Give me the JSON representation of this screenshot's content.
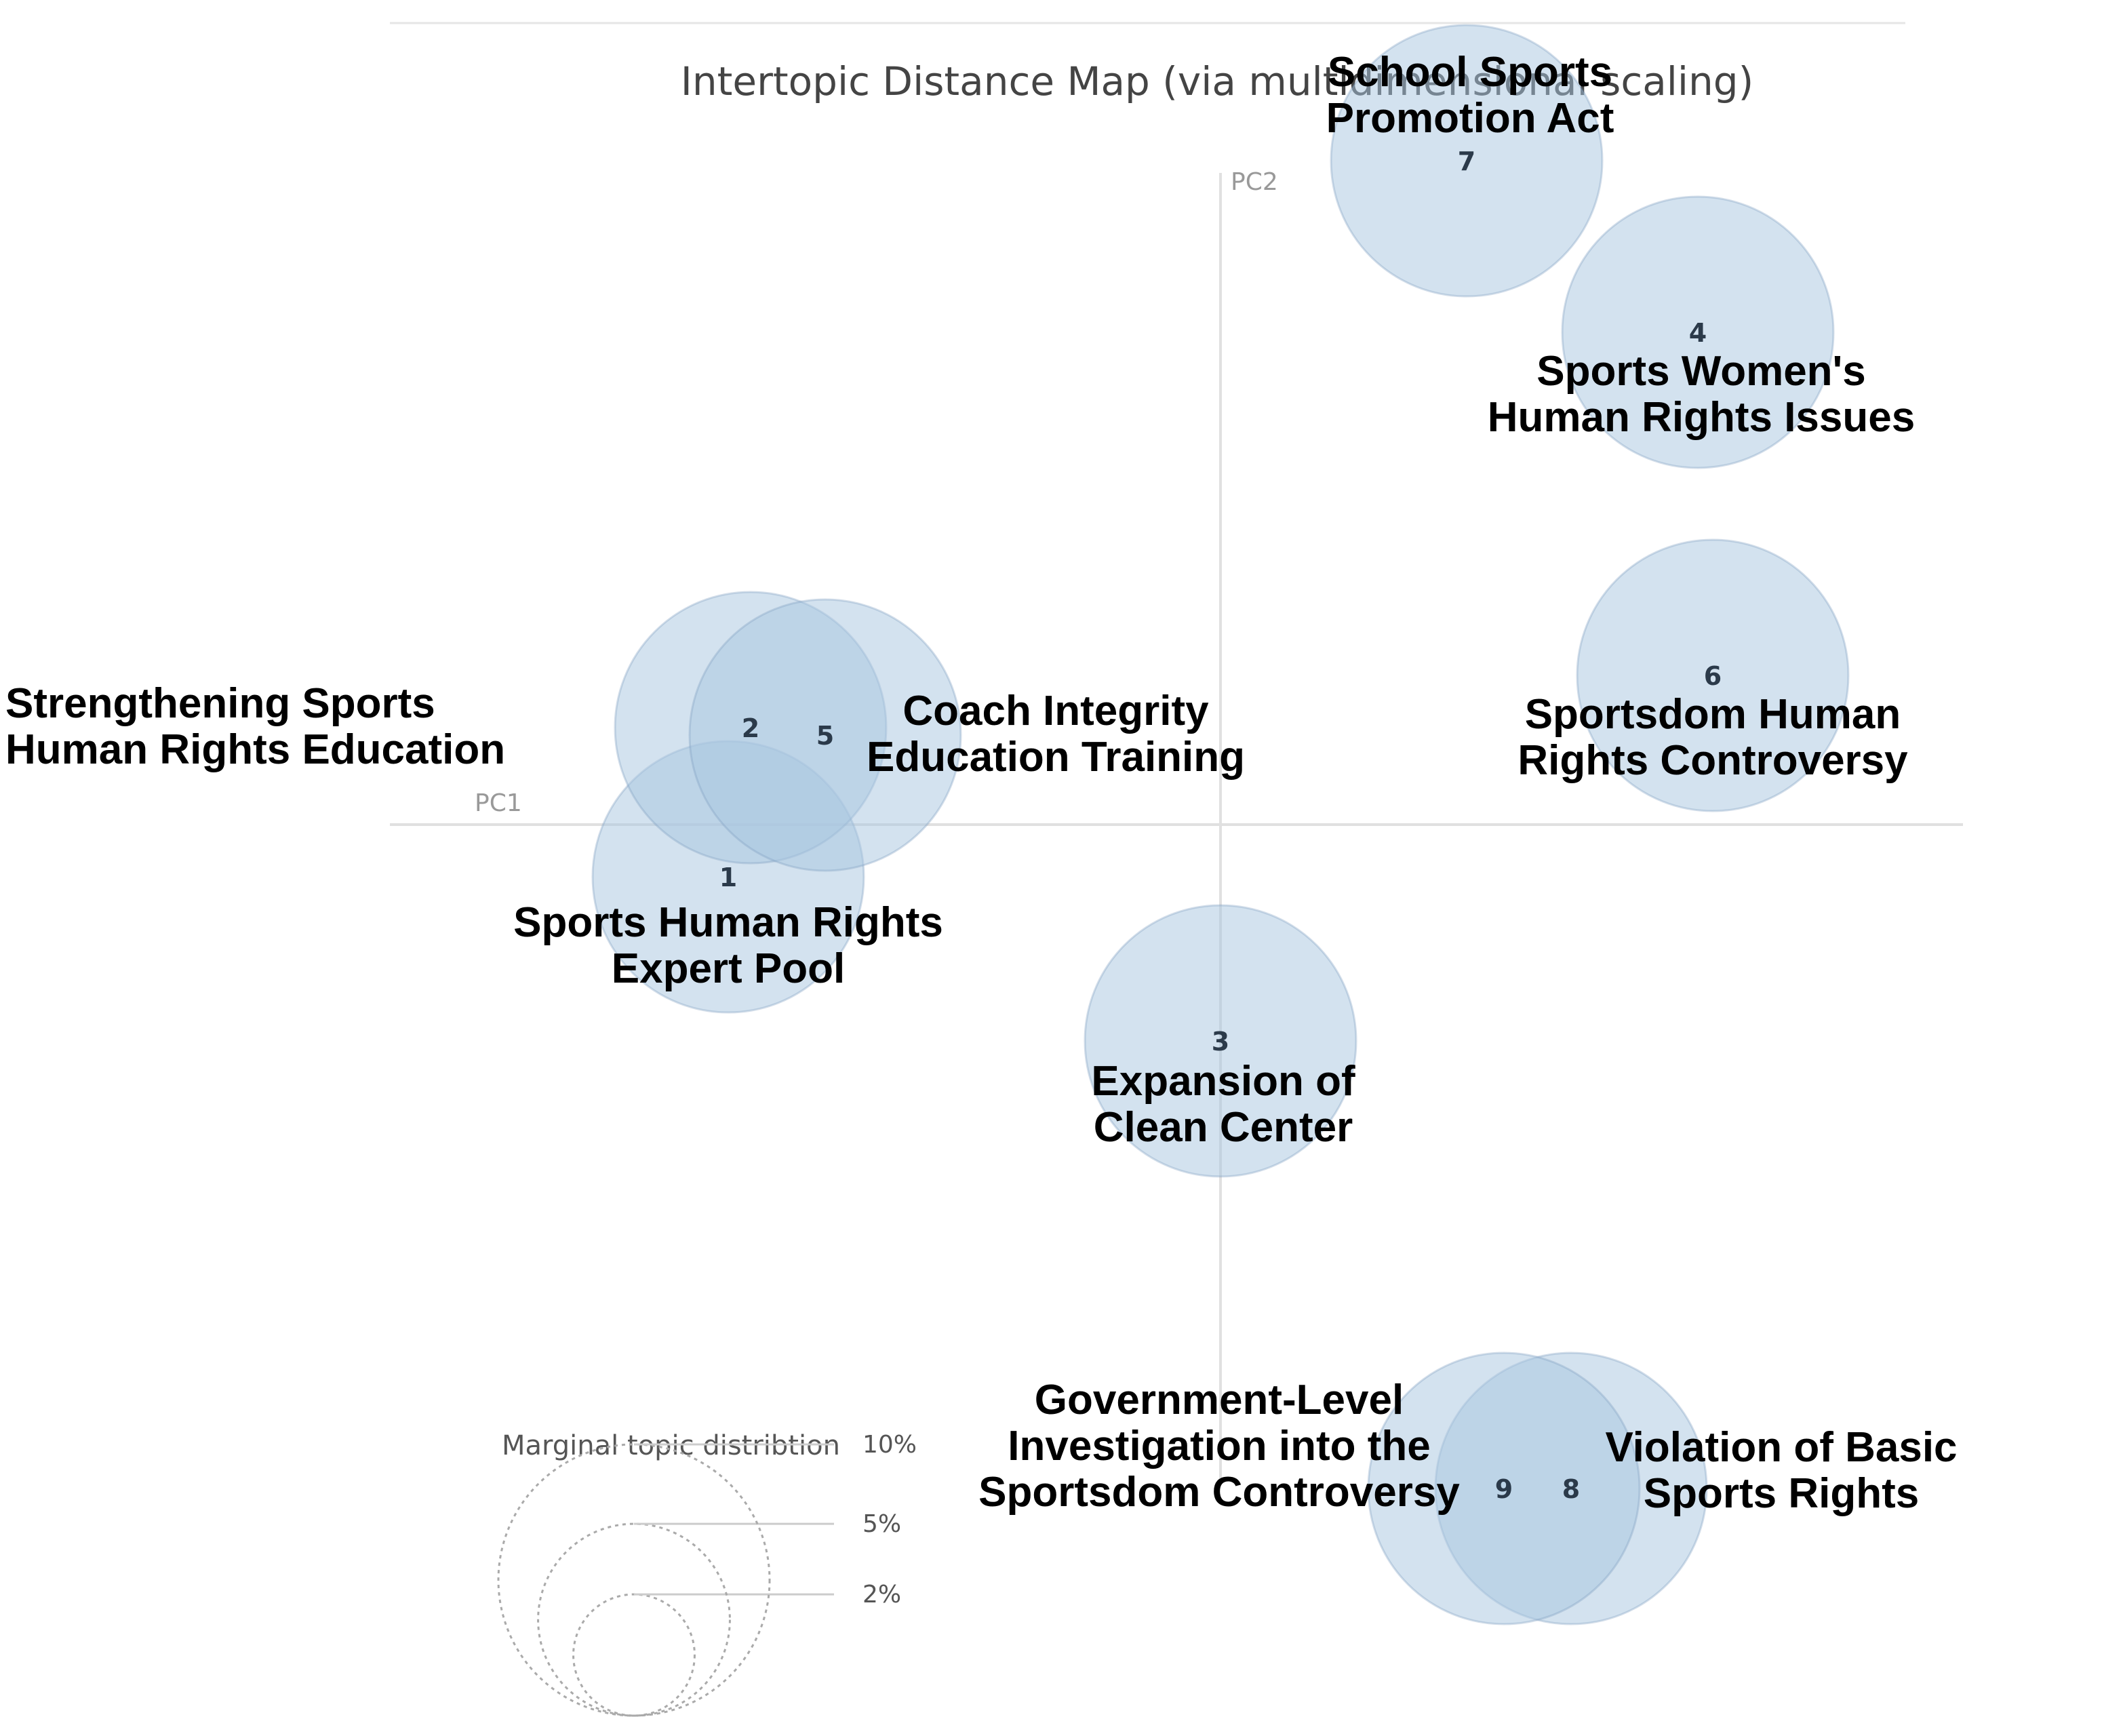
{
  "colors": {
    "bubble_fill": "#a8c6e0",
    "bubble_stroke": "#7d9fc0",
    "axis": "#e0e0e0",
    "top_rule": "#e6e6e6",
    "legend_circle": "#aaaaaa"
  },
  "chart_data": {
    "type": "scatter",
    "title": "Intertopic Distance Map (via multidimensional scaling)",
    "xlabel": "PC1",
    "ylabel": "PC2",
    "xlim": [
      -1,
      1
    ],
    "ylim": [
      -1,
      1
    ],
    "grid": false,
    "legend": {
      "title": "Marginal topic distribtion",
      "entries": [
        {
          "label": "2%",
          "value": 2
        },
        {
          "label": "5%",
          "value": 5
        },
        {
          "label": "10%",
          "value": 10
        }
      ],
      "placement": "bottom-left"
    },
    "topics": [
      {
        "id": "1",
        "name": [
          "Sports Human Rights",
          "Expert Pool"
        ],
        "x": -0.66,
        "y": -0.07,
        "size": 10
      },
      {
        "id": "2",
        "name": [
          "Strengthening Sports",
          "Human Rights Education"
        ],
        "x": -0.63,
        "y": 0.13,
        "size": 10
      },
      {
        "id": "3",
        "name": [
          "Expansion of",
          "Clean Center"
        ],
        "x": 0.0,
        "y": -0.29,
        "size": 10
      },
      {
        "id": "4",
        "name": [
          "Sports Women's",
          "Human Rights Issues"
        ],
        "x": 0.64,
        "y": 0.66,
        "size": 10
      },
      {
        "id": "5",
        "name": [
          "Coach Integrity",
          "Education Training"
        ],
        "x": -0.53,
        "y": 0.12,
        "size": 10
      },
      {
        "id": "6",
        "name": [
          "Sportsdom Human",
          "Rights Controversy"
        ],
        "x": 0.66,
        "y": 0.2,
        "size": 10
      },
      {
        "id": "7",
        "name": [
          "School Sports",
          "Promotion Act"
        ],
        "x": 0.33,
        "y": 0.89,
        "size": 10
      },
      {
        "id": "8",
        "name": [
          "Violation of Basic",
          "Sports Rights"
        ],
        "x": 0.47,
        "y": -0.89,
        "size": 10
      },
      {
        "id": "9",
        "name": [
          "Government-Level",
          "Investigation into the",
          "Sportsdom Controversy"
        ],
        "x": 0.38,
        "y": -0.89,
        "size": 10
      }
    ]
  }
}
